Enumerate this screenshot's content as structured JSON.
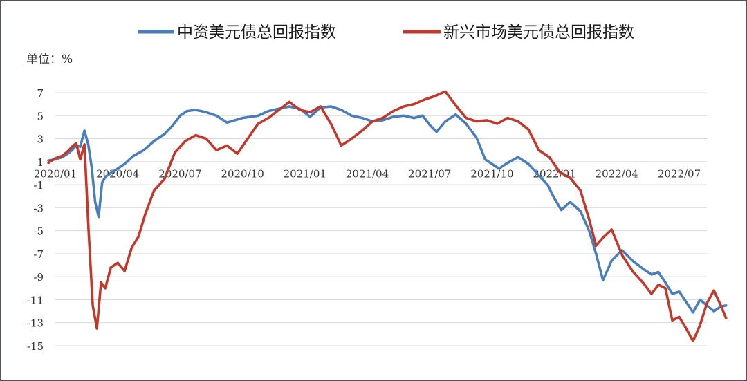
{
  "chart_data": {
    "type": "line",
    "unit_label": "单位：%",
    "ylim": [
      -15,
      7
    ],
    "y_ticks": [
      "7",
      "5",
      "3",
      "1",
      "-1",
      "-3",
      "-5",
      "-7",
      "-9",
      "-11",
      "-13",
      "-15"
    ],
    "x_ticks": [
      "2020/01",
      "2020/04",
      "2020/07",
      "2020/10",
      "2021/01",
      "2021/04",
      "2021/07",
      "2021/10",
      "2022/01",
      "2022/04",
      "2022/07"
    ],
    "grid": "horizontal",
    "legend_position": "top",
    "series": [
      {
        "name": "中资美元债总回报指数",
        "color": "#4a7ebb",
        "points": [
          [
            "2020/01",
            1.1
          ],
          [
            "2020/01",
            1.2
          ],
          [
            "2020/01",
            1.4
          ],
          [
            "2020/02",
            1.7
          ],
          [
            "2020/02",
            2.0
          ],
          [
            "2020/02",
            2.4
          ],
          [
            "2020/02",
            2.3
          ],
          [
            "2020/02",
            3.7
          ],
          [
            "2020/03",
            2.5
          ],
          [
            "2020/03",
            0.5
          ],
          [
            "2020/03",
            -2.5
          ],
          [
            "2020/03",
            -3.8
          ],
          [
            "2020/03",
            -0.8
          ],
          [
            "2020/03",
            -0.3
          ],
          [
            "2020/04",
            0.0
          ],
          [
            "2020/04",
            0.4
          ],
          [
            "2020/04",
            0.8
          ],
          [
            "2020/05",
            1.5
          ],
          [
            "2020/05",
            2.0
          ],
          [
            "2020/06",
            2.8
          ],
          [
            "2020/06",
            3.4
          ],
          [
            "2020/07",
            4.2
          ],
          [
            "2020/07",
            5.0
          ],
          [
            "2020/07",
            5.4
          ],
          [
            "2020/08",
            5.5
          ],
          [
            "2020/08",
            5.3
          ],
          [
            "2020/09",
            5.0
          ],
          [
            "2020/09",
            4.4
          ],
          [
            "2020/10",
            4.8
          ],
          [
            "2020/11",
            5.0
          ],
          [
            "2020/11",
            5.4
          ],
          [
            "2020/12",
            5.6
          ],
          [
            "2020/12",
            5.8
          ],
          [
            "2021/01",
            5.6
          ],
          [
            "2021/01",
            4.9
          ],
          [
            "2021/02",
            5.7
          ],
          [
            "2021/02",
            5.8
          ],
          [
            "2021/03",
            5.5
          ],
          [
            "2021/03",
            5.0
          ],
          [
            "2021/04",
            4.8
          ],
          [
            "2021/04",
            4.5
          ],
          [
            "2021/05",
            4.6
          ],
          [
            "2021/05",
            4.9
          ],
          [
            "2021/06",
            5.0
          ],
          [
            "2021/06",
            4.8
          ],
          [
            "2021/07",
            5.0
          ],
          [
            "2021/07",
            4.2
          ],
          [
            "2021/07",
            3.6
          ],
          [
            "2021/08",
            4.5
          ],
          [
            "2021/08",
            5.1
          ],
          [
            "2021/09",
            4.3
          ],
          [
            "2021/09",
            3.1
          ],
          [
            "2021/10",
            1.2
          ],
          [
            "2021/10",
            0.8
          ],
          [
            "2021/10",
            0.4
          ],
          [
            "2021/11",
            0.9
          ],
          [
            "2021/11",
            1.4
          ],
          [
            "2021/12",
            0.8
          ],
          [
            "2021/12",
            -0.2
          ],
          [
            "2022/01",
            -1.0
          ],
          [
            "2022/01",
            -2.2
          ],
          [
            "2022/01",
            -3.2
          ],
          [
            "2022/02",
            -2.5
          ],
          [
            "2022/02",
            -3.3
          ],
          [
            "2022/03",
            -5.0
          ],
          [
            "2022/03",
            -7.0
          ],
          [
            "2022/03",
            -9.3
          ],
          [
            "2022/04",
            -7.6
          ],
          [
            "2022/04",
            -6.7
          ],
          [
            "2022/05",
            -7.6
          ],
          [
            "2022/05",
            -8.3
          ],
          [
            "2022/06",
            -8.8
          ],
          [
            "2022/06",
            -8.6
          ],
          [
            "2022/06",
            -9.5
          ],
          [
            "2022/07",
            -10.5
          ],
          [
            "2022/07",
            -10.3
          ],
          [
            "2022/07",
            -11.2
          ],
          [
            "2022/08",
            -12.1
          ],
          [
            "2022/08",
            -11.0
          ],
          [
            "2022/08",
            -11.5
          ],
          [
            "2022/09",
            -12.0
          ],
          [
            "2022/09",
            -11.6
          ],
          [
            "2022/09",
            -11.5
          ]
        ]
      },
      {
        "name": "新兴市场美元债总回报指数",
        "color": "#c0392b",
        "points": [
          [
            "2020/01",
            0.9
          ],
          [
            "2020/01",
            1.3
          ],
          [
            "2020/01",
            1.5
          ],
          [
            "2020/02",
            1.9
          ],
          [
            "2020/02",
            2.3
          ],
          [
            "2020/02",
            2.6
          ],
          [
            "2020/02",
            1.2
          ],
          [
            "2020/02",
            2.5
          ],
          [
            "2020/03",
            -5.0
          ],
          [
            "2020/03",
            -11.5
          ],
          [
            "2020/03",
            -13.5
          ],
          [
            "2020/03",
            -9.5
          ],
          [
            "2020/03",
            -10.0
          ],
          [
            "2020/04",
            -8.2
          ],
          [
            "2020/04",
            -7.8
          ],
          [
            "2020/04",
            -8.5
          ],
          [
            "2020/05",
            -6.5
          ],
          [
            "2020/05",
            -5.5
          ],
          [
            "2020/05",
            -3.5
          ],
          [
            "2020/06",
            -1.5
          ],
          [
            "2020/06",
            -0.5
          ],
          [
            "2020/07",
            1.8
          ],
          [
            "2020/07",
            2.8
          ],
          [
            "2020/08",
            3.3
          ],
          [
            "2020/08",
            3.0
          ],
          [
            "2020/09",
            2.0
          ],
          [
            "2020/09",
            2.4
          ],
          [
            "2020/10",
            1.7
          ],
          [
            "2020/10",
            3.0
          ],
          [
            "2020/11",
            4.3
          ],
          [
            "2020/11",
            4.8
          ],
          [
            "2020/12",
            5.5
          ],
          [
            "2020/12",
            6.2
          ],
          [
            "2021/01",
            5.5
          ],
          [
            "2021/01",
            5.3
          ],
          [
            "2021/02",
            5.8
          ],
          [
            "2021/02",
            4.3
          ],
          [
            "2021/03",
            2.4
          ],
          [
            "2021/03",
            3.0
          ],
          [
            "2021/04",
            3.7
          ],
          [
            "2021/04",
            4.5
          ],
          [
            "2021/05",
            4.8
          ],
          [
            "2021/05",
            5.4
          ],
          [
            "2021/06",
            5.8
          ],
          [
            "2021/06",
            6.0
          ],
          [
            "2021/07",
            6.4
          ],
          [
            "2021/07",
            6.7
          ],
          [
            "2021/08",
            7.1
          ],
          [
            "2021/08",
            5.9
          ],
          [
            "2021/09",
            4.8
          ],
          [
            "2021/09",
            4.5
          ],
          [
            "2021/10",
            4.6
          ],
          [
            "2021/10",
            4.3
          ],
          [
            "2021/11",
            4.8
          ],
          [
            "2021/11",
            4.5
          ],
          [
            "2021/12",
            3.8
          ],
          [
            "2021/12",
            2.0
          ],
          [
            "2022/01",
            1.4
          ],
          [
            "2022/01",
            0.1
          ],
          [
            "2022/02",
            -0.4
          ],
          [
            "2022/02",
            -1.5
          ],
          [
            "2022/03",
            -4.0
          ],
          [
            "2022/03",
            -6.3
          ],
          [
            "2022/03",
            -5.6
          ],
          [
            "2022/04",
            -4.9
          ],
          [
            "2022/04",
            -7.1
          ],
          [
            "2022/05",
            -8.5
          ],
          [
            "2022/05",
            -9.5
          ],
          [
            "2022/06",
            -10.5
          ],
          [
            "2022/06",
            -9.7
          ],
          [
            "2022/06",
            -10.0
          ],
          [
            "2022/07",
            -12.8
          ],
          [
            "2022/07",
            -12.5
          ],
          [
            "2022/07",
            -13.5
          ],
          [
            "2022/08",
            -14.6
          ],
          [
            "2022/08",
            -13.2
          ],
          [
            "2022/08",
            -11.3
          ],
          [
            "2022/09",
            -10.2
          ],
          [
            "2022/09",
            -11.5
          ],
          [
            "2022/09",
            -12.6
          ]
        ]
      }
    ]
  }
}
